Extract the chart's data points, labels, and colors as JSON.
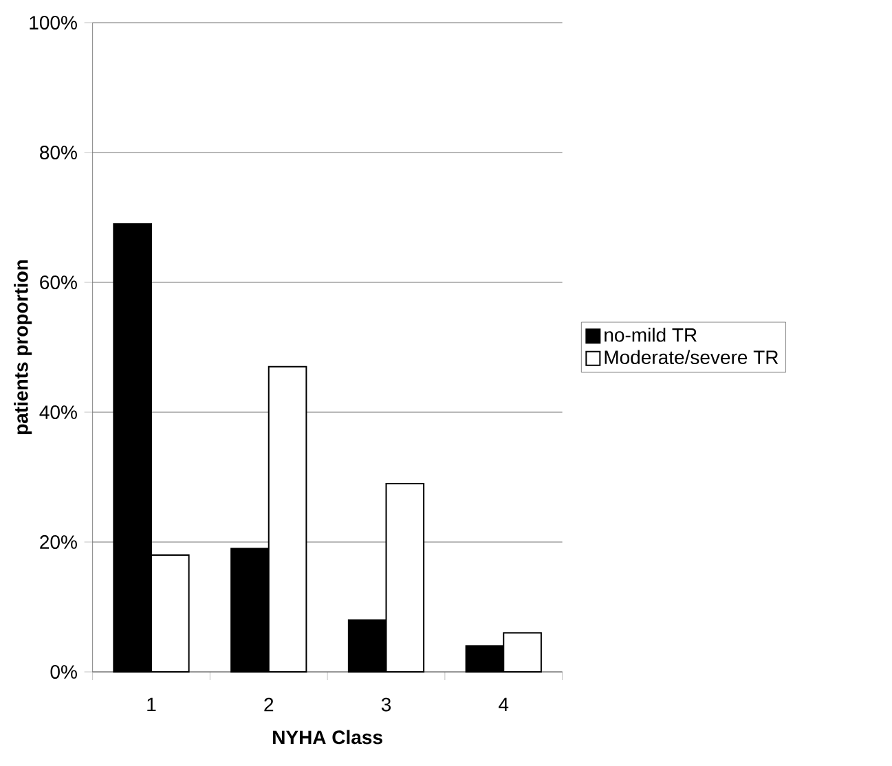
{
  "chart_data": {
    "type": "bar",
    "xlabel": "NYHA Class",
    "ylabel": "patients proportion",
    "categories": [
      "1",
      "2",
      "3",
      "4"
    ],
    "series": [
      {
        "name": "no-mild TR",
        "color": "#000000",
        "values": [
          69,
          19,
          8,
          4
        ]
      },
      {
        "name": "Moderate/severe TR",
        "color": "#ffffff",
        "values": [
          18,
          47,
          29,
          6
        ]
      }
    ],
    "ylim": [
      0,
      100
    ],
    "yticks": [
      {
        "value": 0,
        "label": "0%"
      },
      {
        "value": 20,
        "label": "20%"
      },
      {
        "value": 40,
        "label": "40%"
      },
      {
        "value": 60,
        "label": "60%"
      },
      {
        "value": 80,
        "label": "80%"
      },
      {
        "value": 100,
        "label": "100%"
      }
    ],
    "grid": "y",
    "legend": "right"
  }
}
